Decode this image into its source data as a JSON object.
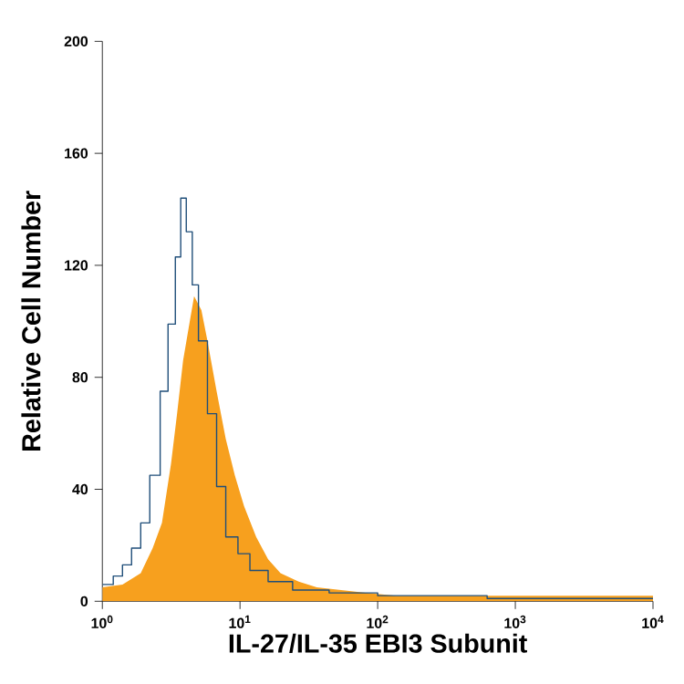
{
  "chart_data": {
    "type": "area",
    "xlabel": "IL-27/IL-35 EBI3 Subunit",
    "ylabel": "Relative Cell Number",
    "log": "x",
    "grid": false,
    "marker": "none",
    "xlim": [
      1,
      10000
    ],
    "ylim": [
      0,
      200
    ],
    "xticks": [
      {
        "value": 1,
        "label": "10$^{0}$"
      },
      {
        "value": 10,
        "label": "10$^{1}$"
      },
      {
        "value": 100,
        "label": "10$^{2}$"
      },
      {
        "value": 1000,
        "label": "10$^{3}$"
      },
      {
        "value": 10000,
        "label": "10$^{4}$"
      }
    ],
    "yticks": [
      0,
      40,
      80,
      120,
      160,
      200
    ],
    "series": [
      {
        "color": "#f7a01e",
        "x": [
          1.0,
          1.4,
          1.9,
          2.32,
          2.71,
          3.15,
          3.49,
          3.86,
          4.28,
          4.64,
          5.24,
          5.8,
          6.76,
          7.88,
          9.17,
          10.7,
          13.1,
          16.0,
          19.7,
          26.7,
          36.1,
          54.3,
          81.6,
          136,
          10000
        ],
        "values": [
          5,
          6,
          10,
          19,
          28,
          49,
          67,
          86,
          99,
          109,
          104,
          93,
          75,
          58,
          45,
          34,
          23,
          15,
          10,
          7,
          5,
          4,
          3,
          2,
          2
        ]
      },
      {
        "type": "step",
        "color": "#1f4e79",
        "x": [
          1.0,
          1.2,
          1.4,
          1.63,
          1.9,
          2.21,
          2.63,
          3.0,
          3.39,
          3.71,
          4.07,
          4.5,
          4.99,
          5.8,
          6.76,
          7.88,
          9.66,
          11.8,
          16.0,
          24.1,
          44.4,
          100,
          250,
          624,
          10000
        ],
        "values": [
          6,
          9,
          13,
          19,
          28,
          45,
          75,
          99,
          123,
          144,
          132,
          113,
          93,
          67,
          41,
          23,
          17,
          11,
          7,
          4,
          3,
          2,
          2,
          1,
          1
        ]
      }
    ]
  }
}
